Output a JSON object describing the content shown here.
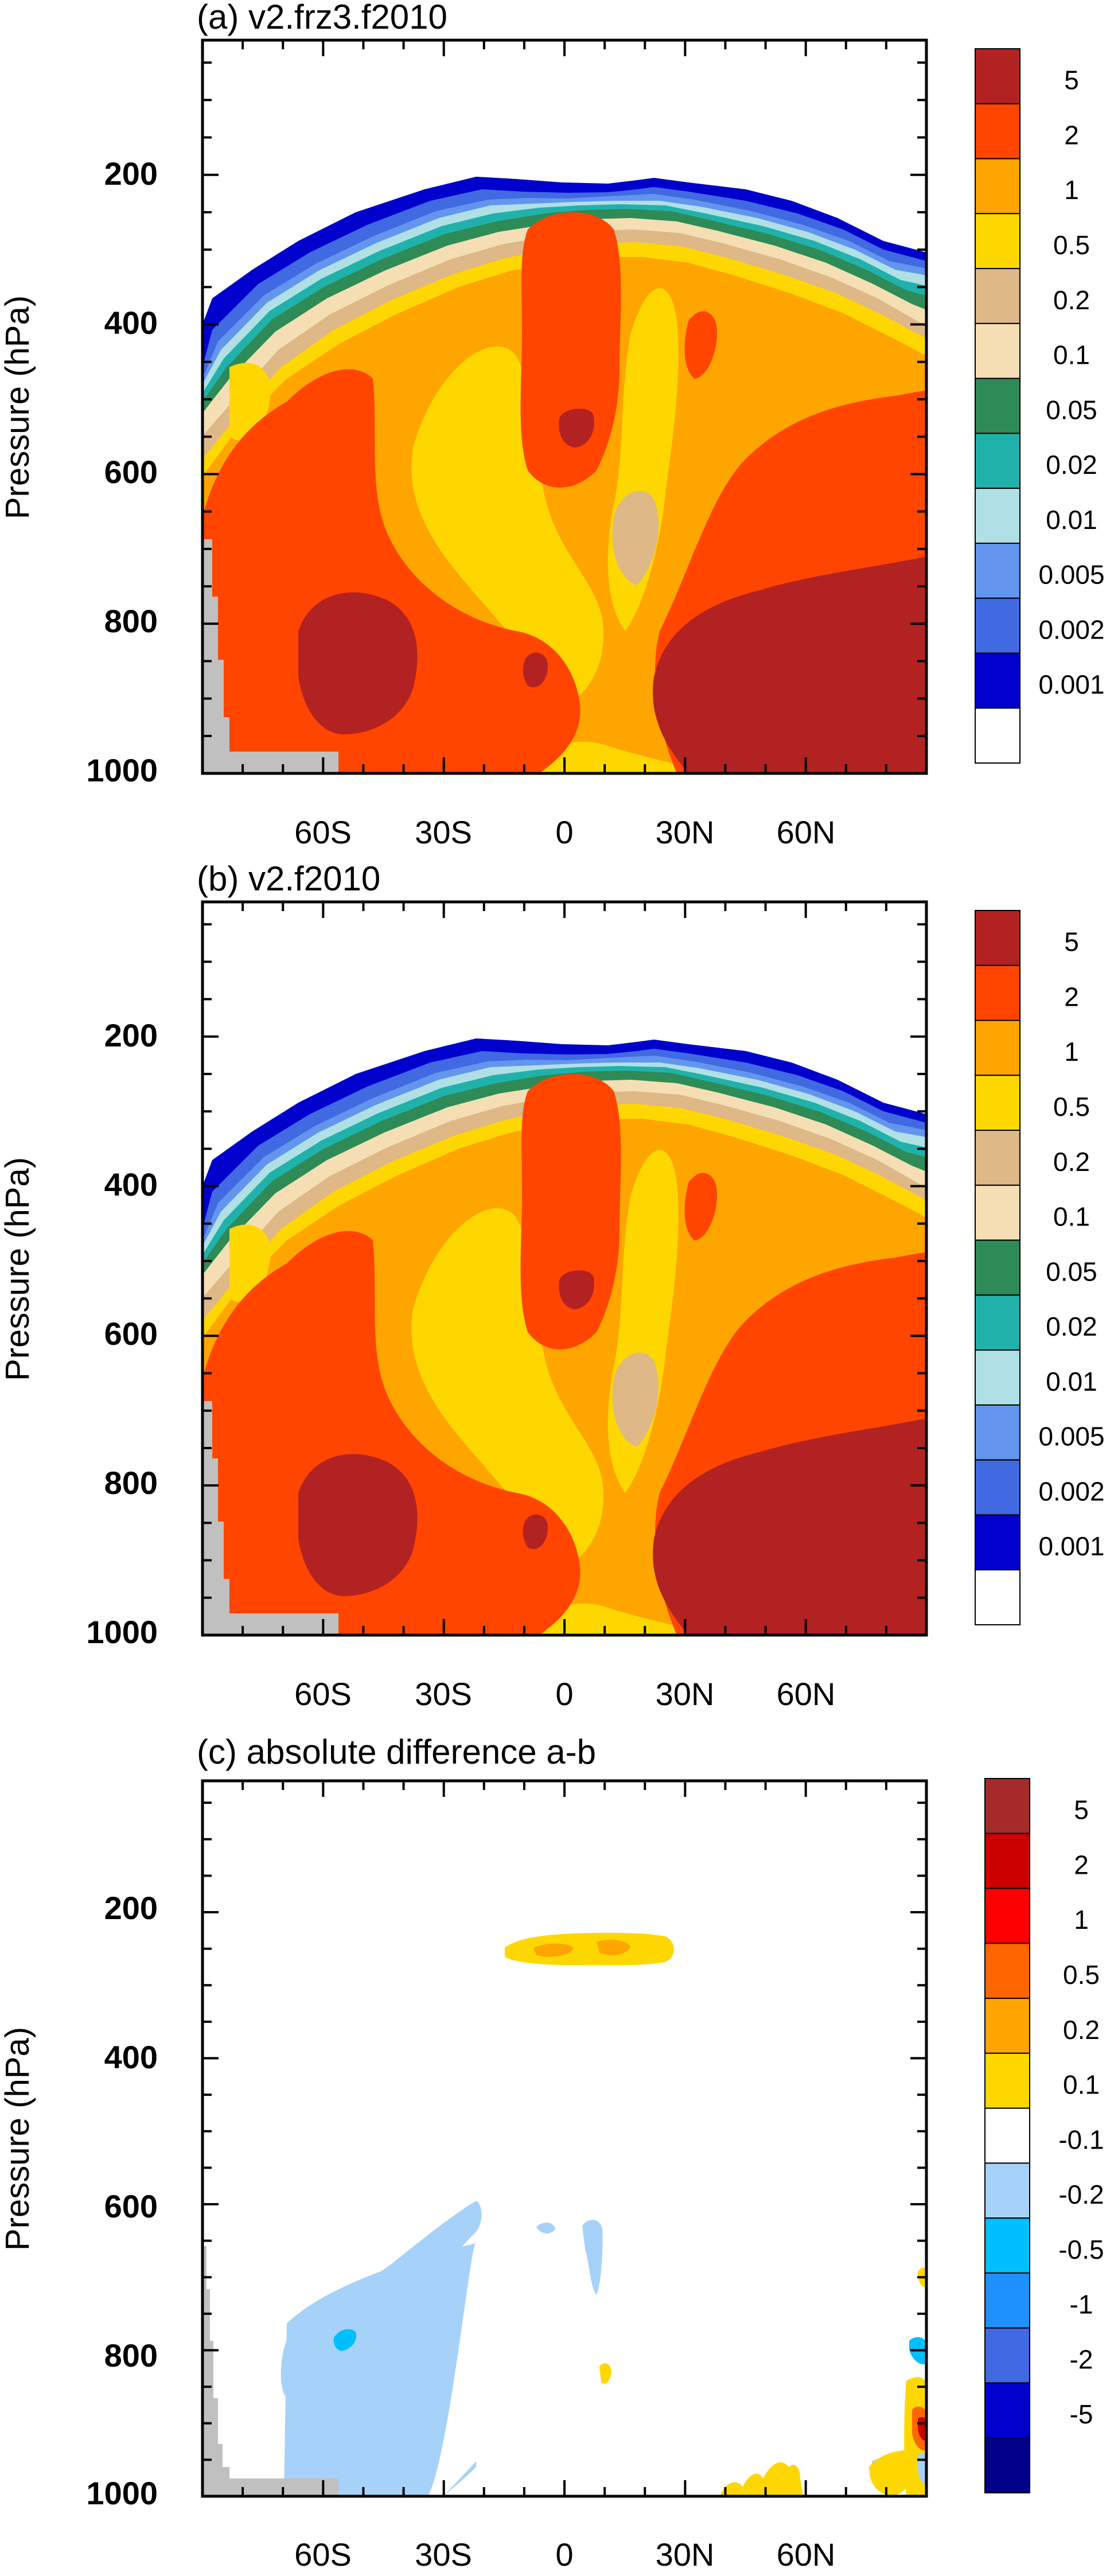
{
  "chart_data": [
    {
      "type": "contour",
      "title": "(a) v2.frz3.f2010",
      "ylabel": "Pressure (hPa)",
      "ylim": [
        1000,
        20
      ],
      "y_ticks": [
        "200",
        "400",
        "600",
        "800",
        "1000"
      ],
      "x_ticks": [
        "60S",
        "30S",
        "0",
        "30N",
        "60N"
      ],
      "colorbar": {
        "labels": [
          "5",
          "2",
          "1",
          "0.5",
          "0.2",
          "0.1",
          "0.05",
          "0.02",
          "0.01",
          "0.005",
          "0.002",
          "0.001"
        ],
        "colors": [
          "#b22222",
          "#ff4500",
          "#ffa500",
          "#ffd700",
          "#deb887",
          "#f5deb3",
          "#2e8b57",
          "#20b2aa",
          "#b0e0e6",
          "#6495ed",
          "#4169e1",
          "#0000cd",
          "#ffffff"
        ]
      }
    },
    {
      "type": "contour",
      "title": "(b) v2.f2010",
      "ylabel": "Pressure (hPa)",
      "ylim": [
        1000,
        20
      ],
      "y_ticks": [
        "200",
        "400",
        "600",
        "800",
        "1000"
      ],
      "x_ticks": [
        "60S",
        "30S",
        "0",
        "30N",
        "60N"
      ],
      "colorbar": {
        "labels": [
          "5",
          "2",
          "1",
          "0.5",
          "0.2",
          "0.1",
          "0.05",
          "0.02",
          "0.01",
          "0.005",
          "0.002",
          "0.001"
        ],
        "colors": [
          "#b22222",
          "#ff4500",
          "#ffa500",
          "#ffd700",
          "#deb887",
          "#f5deb3",
          "#2e8b57",
          "#20b2aa",
          "#b0e0e6",
          "#6495ed",
          "#4169e1",
          "#0000cd",
          "#ffffff"
        ]
      }
    },
    {
      "type": "contour",
      "title": "(c) absolute difference a-b",
      "ylabel": "Pressure (hPa)",
      "ylim": [
        1000,
        20
      ],
      "y_ticks": [
        "200",
        "400",
        "600",
        "800",
        "1000"
      ],
      "x_ticks": [
        "60S",
        "30S",
        "0",
        "30N",
        "60N"
      ],
      "colorbar": {
        "labels": [
          "5",
          "2",
          "1",
          "0.5",
          "0.2",
          "0.1",
          "-0.1",
          "-0.2",
          "-0.5",
          "-1",
          "-2",
          "-5"
        ],
        "colors": [
          "#a52a2a",
          "#cc0000",
          "#ff0000",
          "#ff6600",
          "#ffa500",
          "#ffd700",
          "#ffffff",
          "#a6d1f8",
          "#00bfff",
          "#1e90ff",
          "#4169e1",
          "#0000cd",
          "#00008b"
        ]
      }
    }
  ]
}
